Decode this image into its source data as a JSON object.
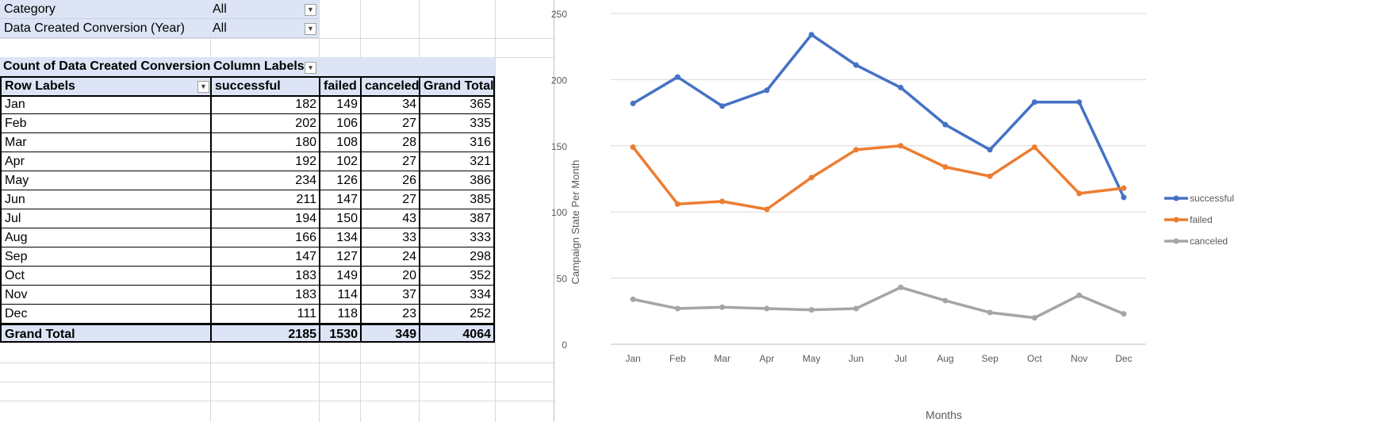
{
  "filters": [
    {
      "label": "Category",
      "value": "All"
    },
    {
      "label": "Data Created Conversion (Year)",
      "value": "All"
    }
  ],
  "pivot": {
    "title": "Count of Data Created Conversion",
    "column_labels": "Column Labels",
    "row_labels": "Row Labels",
    "headers": [
      "successful",
      "failed",
      "canceled",
      "Grand Total"
    ],
    "rows": [
      {
        "label": "Jan",
        "values": [
          "182",
          "149",
          "34",
          "365"
        ]
      },
      {
        "label": "Feb",
        "values": [
          "202",
          "106",
          "27",
          "335"
        ]
      },
      {
        "label": "Mar",
        "values": [
          "180",
          "108",
          "28",
          "316"
        ]
      },
      {
        "label": "Apr",
        "values": [
          "192",
          "102",
          "27",
          "321"
        ]
      },
      {
        "label": "May",
        "values": [
          "234",
          "126",
          "26",
          "386"
        ]
      },
      {
        "label": "Jun",
        "values": [
          "211",
          "147",
          "27",
          "385"
        ]
      },
      {
        "label": "Jul",
        "values": [
          "194",
          "150",
          "43",
          "387"
        ]
      },
      {
        "label": "Aug",
        "values": [
          "166",
          "134",
          "33",
          "333"
        ]
      },
      {
        "label": "Sep",
        "values": [
          "147",
          "127",
          "24",
          "298"
        ]
      },
      {
        "label": "Oct",
        "values": [
          "183",
          "149",
          "20",
          "352"
        ]
      },
      {
        "label": "Nov",
        "values": [
          "183",
          "114",
          "37",
          "334"
        ]
      },
      {
        "label": "Dec",
        "values": [
          "111",
          "118",
          "23",
          "252"
        ]
      }
    ],
    "grand_total": {
      "label": "Grand Total",
      "values": [
        "2185",
        "1530",
        "349",
        "4064"
      ]
    }
  },
  "chart_data": {
    "type": "line",
    "categories": [
      "Jan",
      "Feb",
      "Mar",
      "Apr",
      "May",
      "Jun",
      "Jul",
      "Aug",
      "Sep",
      "Oct",
      "Nov",
      "Dec"
    ],
    "series": [
      {
        "name": "successful",
        "color": "#4472c4",
        "values": [
          182,
          202,
          180,
          192,
          234,
          211,
          194,
          166,
          147,
          183,
          183,
          111
        ]
      },
      {
        "name": "failed",
        "color": "#ed7d31",
        "values": [
          149,
          106,
          108,
          102,
          126,
          147,
          150,
          134,
          127,
          149,
          114,
          118
        ]
      },
      {
        "name": "canceled",
        "color": "#a5a5a5",
        "values": [
          34,
          27,
          28,
          27,
          26,
          27,
          43,
          33,
          24,
          20,
          37,
          23
        ]
      }
    ],
    "y_ticks": [
      "0",
      "50",
      "100",
      "150",
      "200",
      "250"
    ],
    "ylim": [
      0,
      250
    ],
    "xlabel": "Months",
    "ylabel": "Campaign State Per Month",
    "grid": true,
    "legend_position": "right"
  }
}
